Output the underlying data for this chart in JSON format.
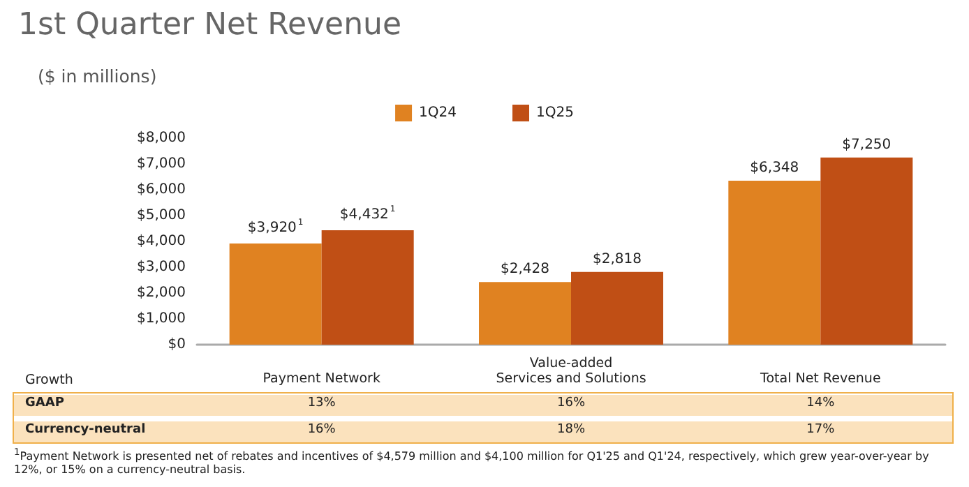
{
  "chart_data": {
    "type": "bar",
    "title": "1st Quarter Net Revenue",
    "subtitle": "($ in millions)",
    "categories": [
      "Payment Network",
      "Value-added\nServices and Solutions",
      "Total Net Revenue"
    ],
    "series": [
      {
        "name": "1Q24",
        "color": "#e08221",
        "values": [
          3920,
          2428,
          6348
        ],
        "value_labels": [
          "$3,920$^{1}$",
          "$2,428",
          "$6,348"
        ]
      },
      {
        "name": "1Q25",
        "color": "#c04f15",
        "values": [
          4432,
          2818,
          7250
        ],
        "value_labels": [
          "$4,432$^{1}$",
          "$2,818",
          "$7,250"
        ]
      }
    ],
    "ylim": [
      0,
      8000
    ],
    "yticks": [
      {
        "value": 0,
        "label": "$0"
      },
      {
        "value": 1000,
        "label": "$1,000"
      },
      {
        "value": 2000,
        "label": "$2,000"
      },
      {
        "value": 3000,
        "label": "$3,000"
      },
      {
        "value": 4000,
        "label": "$4,000"
      },
      {
        "value": 5000,
        "label": "$5,000"
      },
      {
        "value": 6000,
        "label": "$6,000"
      },
      {
        "value": 7000,
        "label": "$7,000"
      },
      {
        "value": 8000,
        "label": "$8,000"
      }
    ],
    "grid": false,
    "legend": "top",
    "annotations": [
      "Growth",
      "GAAP",
      "13%",
      "16%",
      "14%",
      "Currency-neutral",
      "16%",
      "18%",
      "17%",
      "$^{1}$Payment Network is presented net of rebates and incentives of $4,579 million and $4,100 million for Q1'25 and Q1'24, respectively, which grew year-over-year by 12%, or 15% on a currency-neutral basis."
    ]
  }
}
